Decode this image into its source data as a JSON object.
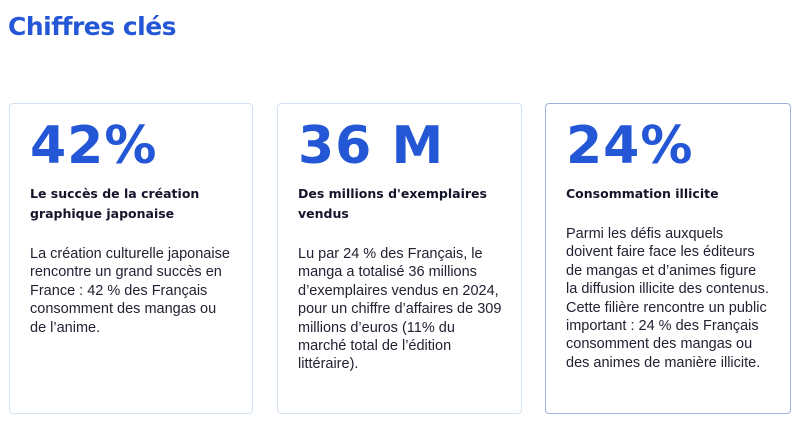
{
  "section": {
    "title": "Chiffres clés"
  },
  "cards": [
    {
      "figure": "42%",
      "headline": "Le succès de la création graphique japonaise",
      "body": "La création culturelle japonaise rencontre un grand succès en France : 42 % des Français consomment des mangas ou de l’anime."
    },
    {
      "figure": "36 M",
      "headline": "Des millions d'exemplaires vendus",
      "body": "Lu par 24 % des Français, le manga a totalisé 36 millions d’exemplaires vendus en 2024, pour un chiffre d’affaires de 309 millions d’euros (11% du marché total de l’édition littéraire)."
    },
    {
      "figure": "24%",
      "headline": "Consommation illicite",
      "body": "Parmi les défis auxquels doivent faire face les éditeurs de mangas et d’animes figure la diffusion illicite des contenus. Cette filière rencontre un public important : 24 % des Français consomment des mangas ou des animes de manière illicite."
    }
  ],
  "colors": {
    "accent": "#2457d6",
    "headline": "#14142b",
    "body": "#222233",
    "card_border": "#d4e1f1",
    "card_border_highlight": "#9db3dc"
  }
}
